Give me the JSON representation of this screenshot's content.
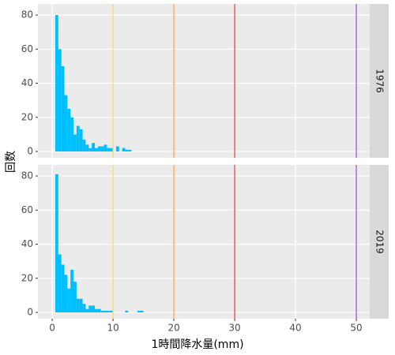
{
  "chart_data": {
    "type": "histogram",
    "x_label": "1時間降水量(mm)",
    "y_label": "回数",
    "bins": [
      0.5,
      1,
      1.5,
      2,
      2.5,
      3,
      3.5,
      4,
      4.5,
      5,
      5.5,
      6,
      6.5,
      7,
      7.5,
      8,
      8.5,
      9,
      9.5,
      10,
      10.5,
      11,
      11.5,
      12,
      12.5,
      13,
      13.5,
      14,
      14.5,
      15
    ],
    "color": "#00bfff",
    "xlim": [
      -2.35,
      52.2
    ],
    "xticks": [
      0,
      10,
      20,
      30,
      40,
      50
    ],
    "ylim": [
      -3.7,
      86.5
    ],
    "yticks": [
      0,
      20,
      40,
      60,
      80
    ],
    "grid": true,
    "vlines": [
      {
        "value": 10,
        "color": "#ffd94a"
      },
      {
        "value": 20,
        "color": "#ffa040"
      },
      {
        "value": 30,
        "color": "#ff3030"
      },
      {
        "value": 50,
        "color": "#a040e0"
      }
    ],
    "facets": [
      {
        "label": "1976",
        "counts": [
          80,
          60,
          50,
          33,
          25,
          20,
          10,
          15,
          13,
          7,
          4,
          2,
          5,
          2,
          3,
          3,
          4,
          2,
          2,
          0,
          3,
          0,
          2,
          1,
          1,
          0,
          0,
          0,
          0
        ]
      },
      {
        "label": "2019",
        "counts": [
          81,
          34,
          28,
          22,
          14,
          25,
          18,
          8,
          8,
          5,
          2,
          4,
          4,
          2,
          2,
          1,
          1,
          1,
          1,
          0,
          0,
          0,
          0,
          1,
          0,
          0,
          0,
          1,
          1
        ]
      }
    ]
  }
}
